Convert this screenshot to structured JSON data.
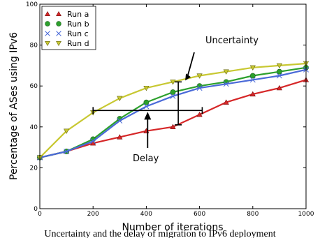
{
  "chart_data": {
    "type": "line",
    "title": "",
    "xlabel": "Number of iterations",
    "ylabel": "Percentage of ASes using IPv6",
    "xlim": [
      0,
      1000
    ],
    "ylim": [
      0,
      100
    ],
    "xticks": [
      0,
      200,
      400,
      600,
      800,
      1000
    ],
    "yticks": [
      0,
      20,
      40,
      60,
      80,
      100
    ],
    "grid": false,
    "legend_position": "top-left",
    "x": [
      0,
      100,
      200,
      300,
      400,
      500,
      600,
      700,
      800,
      900,
      1000
    ],
    "series": [
      {
        "name": "Run a",
        "color": "#d62728",
        "marker": "triangle-up",
        "values": [
          25,
          28,
          32,
          35,
          38,
          40,
          46,
          52,
          56,
          59,
          63
        ]
      },
      {
        "name": "Run b",
        "color": "#2ca02c",
        "marker": "circle",
        "values": [
          25,
          28,
          34,
          44,
          52,
          57,
          60,
          62,
          65,
          67,
          69
        ]
      },
      {
        "name": "Run c",
        "color": "#4a6ad8",
        "marker": "x",
        "values": [
          25,
          28,
          33,
          43,
          50,
          55,
          59,
          61,
          63,
          65,
          68
        ]
      },
      {
        "name": "Run d",
        "color": "#c8c832",
        "marker": "triangle-down",
        "values": [
          25,
          38,
          47,
          54,
          59,
          62,
          65,
          67,
          69,
          70,
          71
        ]
      }
    ],
    "annotations": [
      {
        "text": "Uncertainty"
      },
      {
        "text": "Delay"
      }
    ],
    "uncertainty_bar": {
      "x": 520,
      "y_low": 41,
      "y_high": 62
    },
    "delay_bar": {
      "y": 48,
      "x_low": 200,
      "x_high": 610
    }
  },
  "caption": "Uncertainty and the delay of migration to IPv6 deployment"
}
